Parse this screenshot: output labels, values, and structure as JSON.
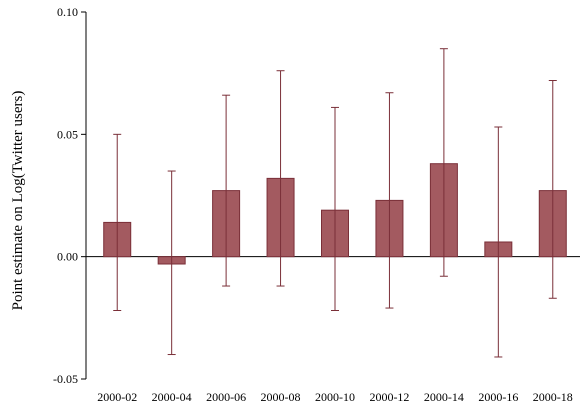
{
  "chart_data": {
    "type": "bar",
    "title": "",
    "xlabel": "",
    "ylabel": "Point estimate on Log(Twitter users)",
    "ylim": [
      -0.05,
      0.1
    ],
    "yticks": [
      -0.05,
      0.0,
      0.05,
      0.1
    ],
    "ytick_labels": [
      "-0.05",
      "0.00",
      "0.05",
      "0.10"
    ],
    "grid": false,
    "legend": "none",
    "error_bars": true,
    "categories": [
      "2000-02",
      "2000-04",
      "2000-06",
      "2000-08",
      "2000-10",
      "2000-12",
      "2000-14",
      "2000-16",
      "2000-18"
    ],
    "values": [
      0.014,
      -0.003,
      0.027,
      0.032,
      0.019,
      0.023,
      0.038,
      0.006,
      0.027
    ],
    "ci_low": [
      -0.022,
      -0.04,
      -0.012,
      -0.012,
      -0.022,
      -0.021,
      -0.008,
      -0.041,
      -0.017
    ],
    "ci_high": [
      0.05,
      0.035,
      0.066,
      0.076,
      0.061,
      0.067,
      0.085,
      0.053,
      0.072
    ],
    "colors": {
      "bar_fill": "#a35a60",
      "bar_stroke": "#7a2f38",
      "error_bar": "#7a2f38",
      "axis": "#000000"
    }
  }
}
